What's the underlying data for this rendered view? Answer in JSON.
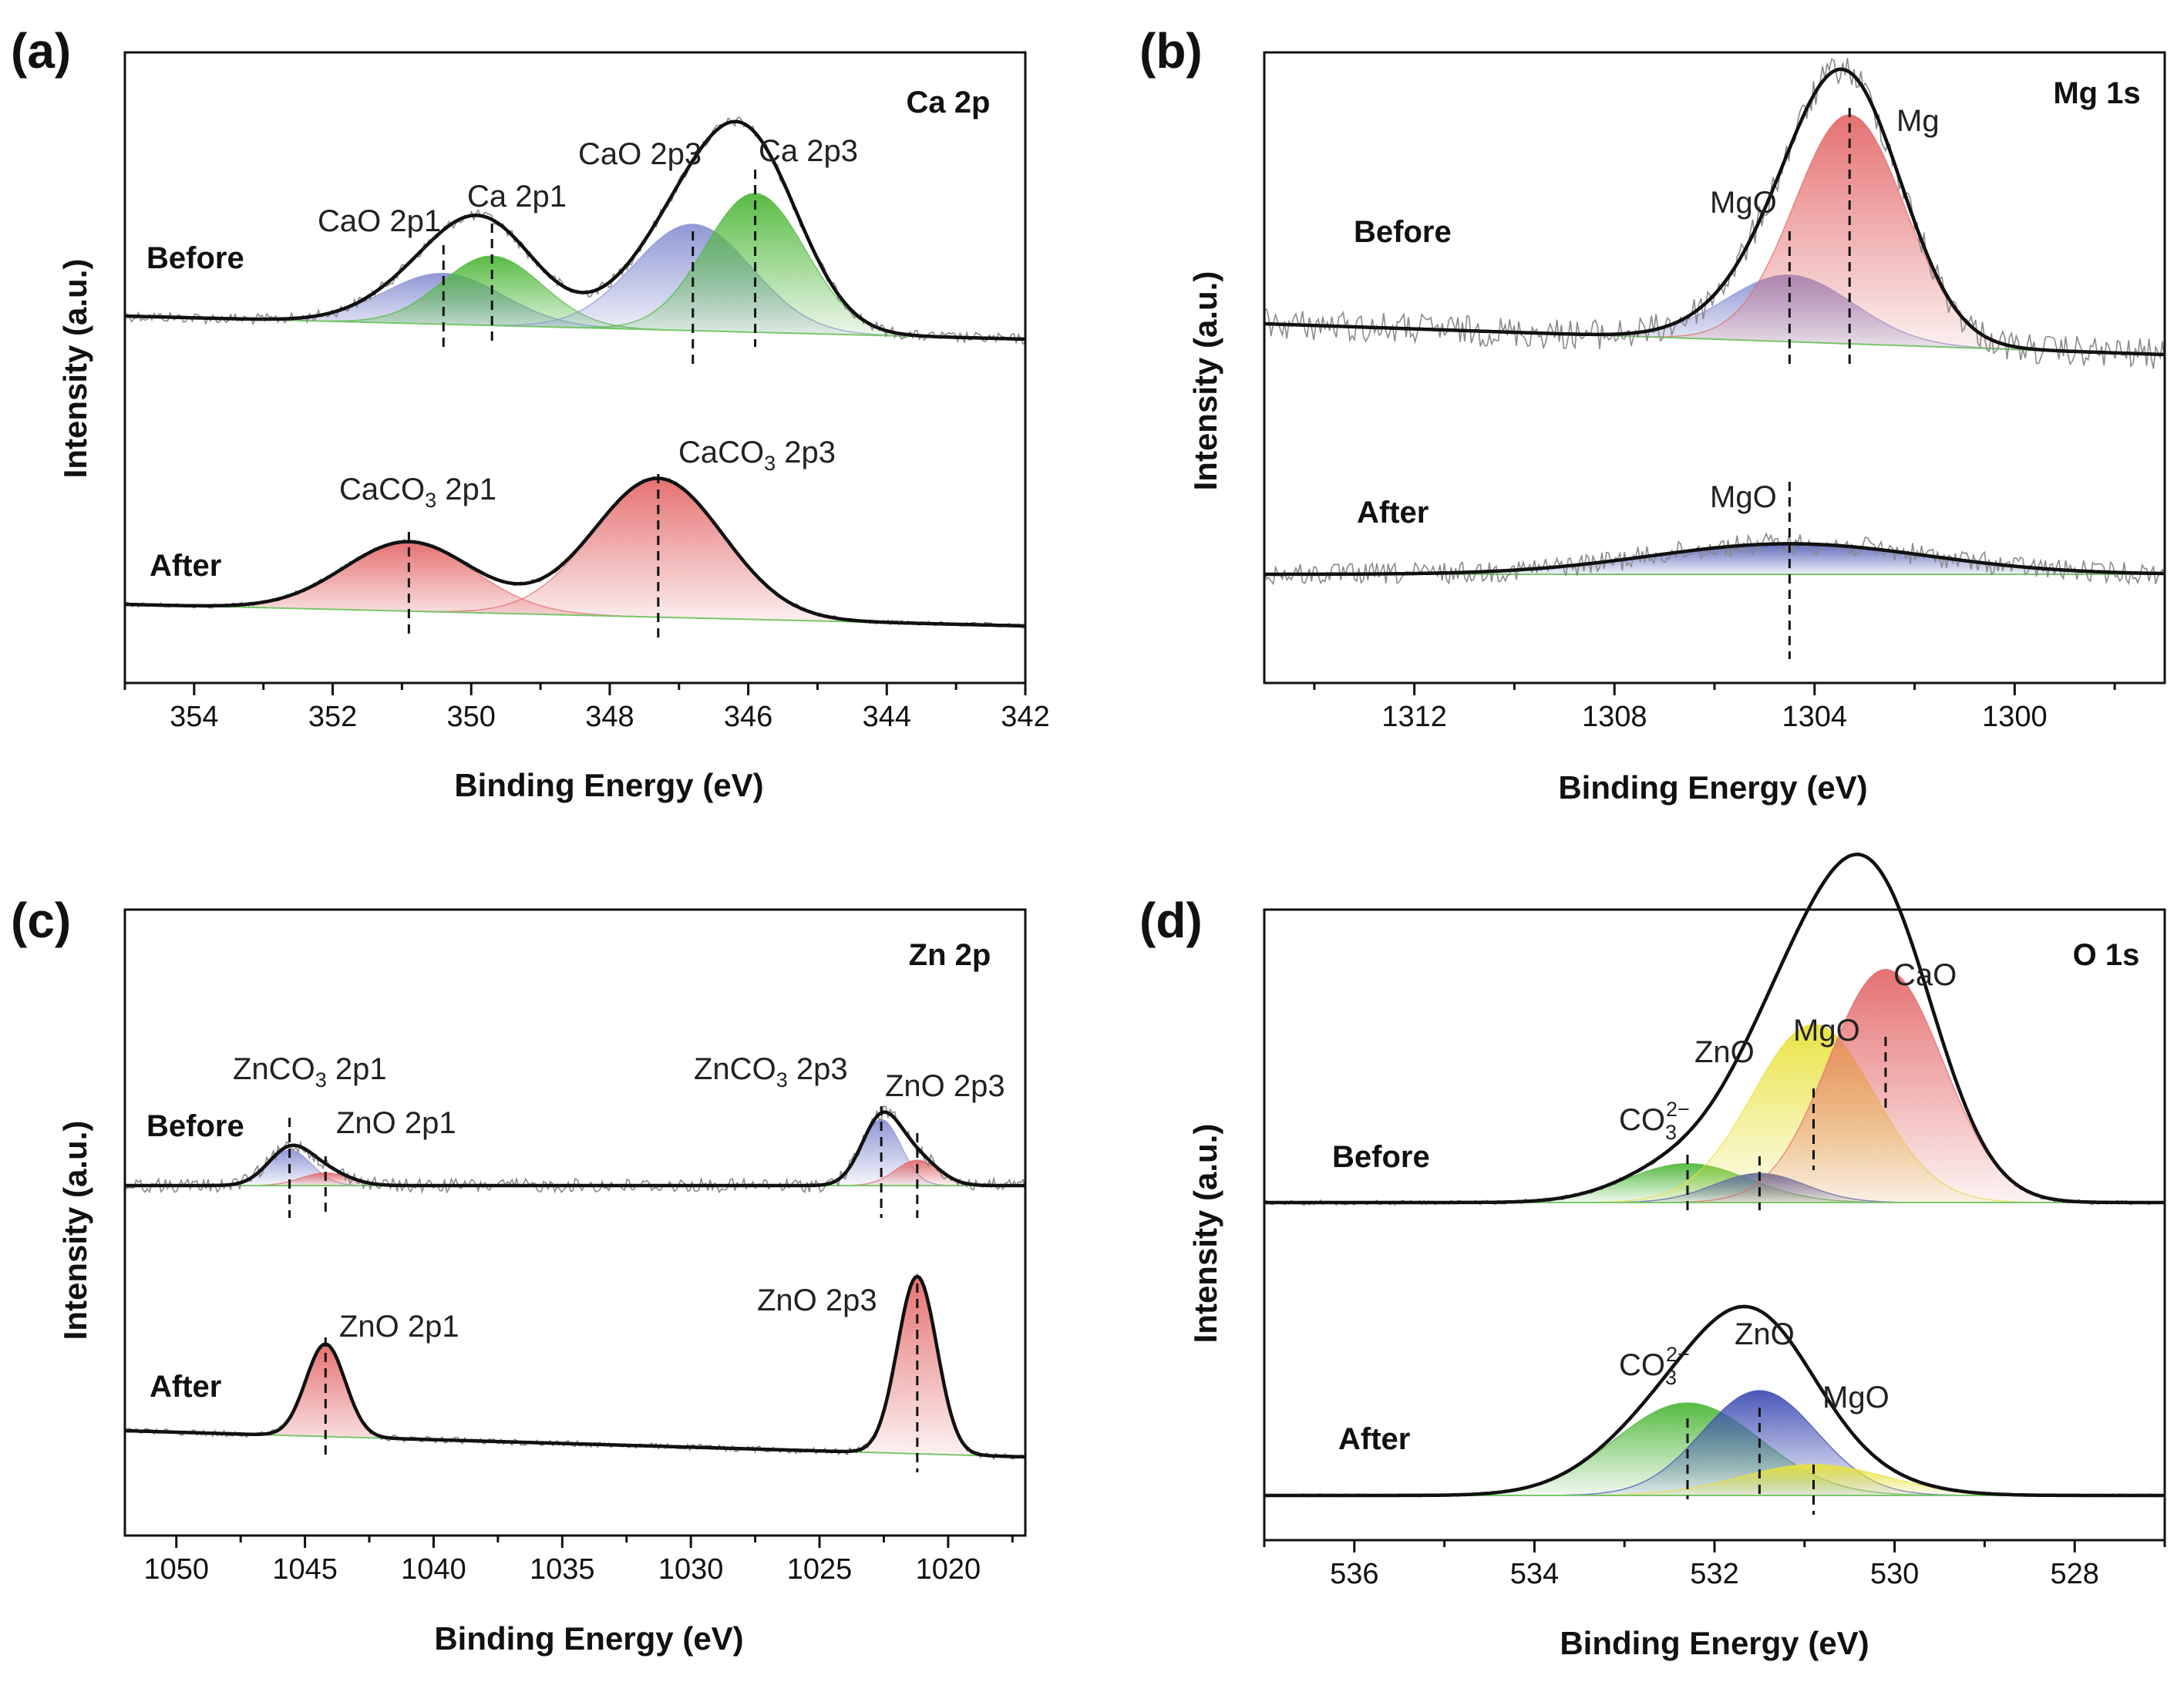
{
  "figure": {
    "xlabel_common": "Binding Energy (eV)",
    "ylabel_common": "Intensity (a.u.)"
  },
  "chart_data": [
    {
      "type": "line",
      "panel": "(a)",
      "title": "Ca 2p",
      "xlabel": "Binding Energy (eV)",
      "ylabel": "Intensity (a.u.)",
      "xlim": [
        355,
        342
      ],
      "xticks": [
        "354",
        "352",
        "350",
        "348",
        "346",
        "344",
        "342"
      ],
      "xtick_values": [
        354,
        352,
        350,
        348,
        346,
        344,
        342
      ],
      "series": [
        {
          "name": "Before",
          "baseline": 0.0,
          "components": [
            {
              "label": "CaO 2p1",
              "center": 350.4,
              "height": 0.22,
              "fwhm": 2.0,
              "color": "#8a93d4",
              "marker": true
            },
            {
              "label": "Ca 2p1",
              "center": 349.7,
              "height": 0.3,
              "fwhm": 1.7,
              "color": "#4fb83a",
              "marker": true
            },
            {
              "label": "CaO 2p3",
              "center": 346.8,
              "height": 0.46,
              "fwhm": 2.0,
              "color": "#8a93d4",
              "marker": true
            },
            {
              "label": "Ca 2p3",
              "center": 345.9,
              "height": 0.6,
              "fwhm": 1.7,
              "color": "#4fb83a",
              "marker": true
            }
          ]
        },
        {
          "name": "After",
          "baseline": 0.0,
          "components": [
            {
              "label": "CaCO3 2p1",
              "center": 350.9,
              "height": 0.45,
              "fwhm": 2.2,
              "color": "#e46a6a",
              "marker": true
            },
            {
              "label": "CaCO3 2p3",
              "center": 347.3,
              "height": 0.9,
              "fwhm": 2.2,
              "color": "#e46a6a",
              "marker": true
            }
          ]
        }
      ]
    },
    {
      "type": "line",
      "panel": "(b)",
      "title": "Mg 1s",
      "xlabel": "Binding Energy (eV)",
      "ylabel": "Intensity (a.u.)",
      "xlim": [
        1315,
        1297
      ],
      "xticks": [
        "1312",
        "1308",
        "1304",
        "1300"
      ],
      "xtick_values": [
        1312,
        1308,
        1304,
        1300
      ],
      "series": [
        {
          "name": "Before",
          "baseline": 0.0,
          "components": [
            {
              "label": "MgO",
              "center": 1304.5,
              "height": 0.32,
              "fwhm": 3.0,
              "color": "#8a93d4",
              "marker": true
            },
            {
              "label": "Mg",
              "center": 1303.3,
              "height": 1.1,
              "fwhm": 2.6,
              "color": "#e46a6a",
              "marker": true
            }
          ]
        },
        {
          "name": "After",
          "baseline": 0.0,
          "components": [
            {
              "label": "MgO",
              "center": 1304.5,
              "height": 0.18,
              "fwhm": 6.5,
              "color": "#5561b8",
              "marker": true
            }
          ]
        }
      ]
    },
    {
      "type": "line",
      "panel": "(c)",
      "title": "Zn 2p",
      "xlabel": "Binding Energy (eV)",
      "ylabel": "Intensity (a.u.)",
      "xlim": [
        1052,
        1017
      ],
      "xticks": [
        "1050",
        "1045",
        "1040",
        "1035",
        "1030",
        "1025",
        "1020"
      ],
      "xtick_values": [
        1050,
        1045,
        1040,
        1035,
        1030,
        1025,
        1020
      ],
      "series": [
        {
          "name": "Before",
          "baseline": 0.0,
          "components": [
            {
              "label": "ZnCO3 2p1",
              "center": 1045.6,
              "height": 0.14,
              "fwhm": 2.0,
              "color": "#8a93d4",
              "marker": true
            },
            {
              "label": "ZnO 2p1",
              "center": 1044.2,
              "height": 0.05,
              "fwhm": 2.2,
              "color": "#e46a6a",
              "marker": true
            },
            {
              "label": "ZnCO3 2p3",
              "center": 1022.6,
              "height": 0.26,
              "fwhm": 1.8,
              "color": "#8a93d4",
              "marker": true
            },
            {
              "label": "ZnO 2p3",
              "center": 1021.2,
              "height": 0.1,
              "fwhm": 2.0,
              "color": "#e46a6a",
              "marker": true
            }
          ]
        },
        {
          "name": "After",
          "baseline": 0.0,
          "components": [
            {
              "label": "ZnO 2p1",
              "center": 1044.2,
              "height": 0.6,
              "fwhm": 1.8,
              "color": "#e46a6a",
              "marker": true
            },
            {
              "label": "ZnO 2p3",
              "center": 1021.2,
              "height": 1.15,
              "fwhm": 1.8,
              "color": "#e46a6a",
              "marker": true
            }
          ]
        }
      ]
    },
    {
      "type": "line",
      "panel": "(d)",
      "title": "O 1s",
      "xlabel": "Binding Energy (eV)",
      "ylabel": "Intensity (a.u.)",
      "xlim": [
        537,
        527
      ],
      "xticks": [
        "536",
        "534",
        "532",
        "530",
        "528"
      ],
      "xtick_values": [
        536,
        534,
        532,
        530,
        528
      ],
      "series": [
        {
          "name": "Before",
          "baseline": 0.0,
          "components": [
            {
              "label": "CO3 2-",
              "center": 532.3,
              "height": 0.12,
              "fwhm": 1.6,
              "color": "#4fb83a",
              "marker": true
            },
            {
              "label": "ZnO",
              "center": 531.5,
              "height": 0.09,
              "fwhm": 1.2,
              "color": "#3f4fb3",
              "marker": true
            },
            {
              "label": "MgO",
              "center": 530.9,
              "height": 0.55,
              "fwhm": 1.6,
              "color": "#e8e23c",
              "marker": true
            },
            {
              "label": "CaO",
              "center": 530.1,
              "height": 0.72,
              "fwhm": 1.5,
              "color": "#e46a6a",
              "marker": true
            }
          ]
        },
        {
          "name": "After",
          "baseline": 0.0,
          "components": [
            {
              "label": "CO3 2-",
              "center": 532.3,
              "height": 0.3,
              "fwhm": 1.9,
              "color": "#4fb83a",
              "marker": true
            },
            {
              "label": "ZnO",
              "center": 531.5,
              "height": 0.34,
              "fwhm": 1.5,
              "color": "#3f4fb3",
              "marker": true
            },
            {
              "label": "MgO",
              "center": 530.9,
              "height": 0.1,
              "fwhm": 1.9,
              "color": "#e8e23c",
              "marker": true
            }
          ]
        }
      ]
    }
  ],
  "annotations": {
    "a": {
      "before": "Before",
      "after": "After",
      "cao2p1": "CaO 2p1",
      "ca2p1": "Ca 2p1",
      "cao2p3": "CaO 2p3",
      "ca2p3": "Ca 2p3",
      "caco3": "CaCO",
      "sub3": "3",
      "sfx_2p1": " 2p1",
      "sfx_2p3": " 2p3"
    },
    "b": {
      "before": "Before",
      "after": "After",
      "mgo": "MgO",
      "mg": "Mg"
    },
    "c": {
      "before": "Before",
      "after": "After",
      "znco3": "ZnCO",
      "sub3": "3",
      "sfx_2p1": " 2p1",
      "sfx_2p3": " 2p3",
      "zno2p1": "ZnO 2p1",
      "zno2p3": "ZnO 2p3"
    },
    "d": {
      "before": "Before",
      "after": "After",
      "co": "CO",
      "sub3": "3",
      "sup2m": "2−",
      "zno": "ZnO",
      "mgo": "MgO",
      "cao": "CaO"
    }
  }
}
